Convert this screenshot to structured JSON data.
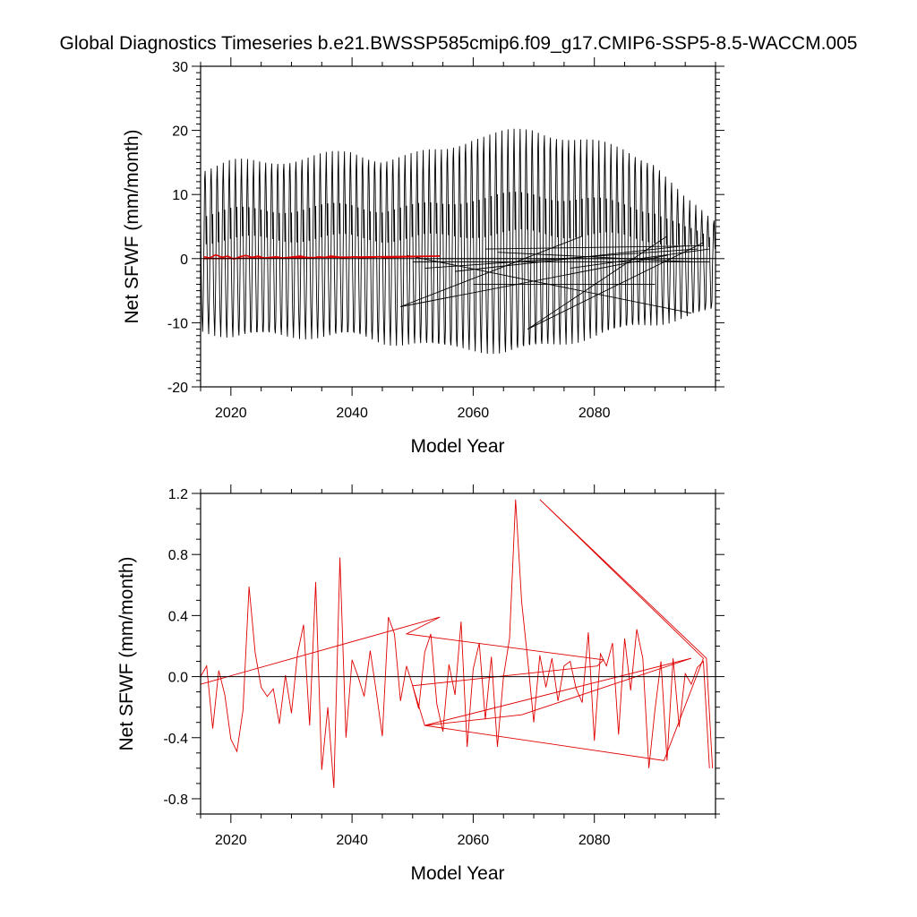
{
  "figure": {
    "title": "Global Diagnostics Timeseries b.e21.BWSSP585cmip6.f09_g17.CMIP6-SSP5-8.5-WACCM.005"
  },
  "chart_data": [
    {
      "type": "line",
      "xlabel": "Model Year",
      "ylabel": "Net SFWF (mm/month)",
      "xlim": [
        2015,
        2100
      ],
      "ylim": [
        -20,
        30
      ],
      "x_ticks": [
        2020,
        2040,
        2060,
        2080
      ],
      "x_tick_labels": [
        "2020",
        "2040",
        "2060",
        "2080"
      ],
      "y_ticks": [
        -20,
        -10,
        0,
        10,
        20,
        30
      ],
      "y_tick_labels": [
        "-20",
        "-10",
        "0",
        "10",
        "20",
        "30"
      ],
      "zero_line": 0,
      "colors": {
        "monthly": "#000000",
        "annual": "#e00000",
        "zero": "#000000"
      },
      "grid": false,
      "series": [
        {
          "style": "monthly-black",
          "monthly_envelope": {
            "x": [
              2015,
              2020,
              2025,
              2030,
              2035,
              2040,
              2045,
              2050,
              2055,
              2060,
              2065,
              2070,
              2075,
              2080,
              2085,
              2090,
              2095,
              2099.5
            ],
            "max": [
              14,
              15,
              15,
              15.5,
              16,
              16.5,
              15.5,
              16,
              17,
              19,
              19.5,
              20,
              19,
              18,
              17,
              15,
              9,
              6
            ],
            "min": [
              -11,
              -12,
              -12,
              -12,
              -12,
              -12,
              -13,
              -13,
              -14,
              -14,
              -14.5,
              -14,
              -13,
              -12,
              -11,
              -10,
              -9,
              -8
            ]
          },
          "spurious_segments": [
            [
              [
                2048,
                -7.5
              ],
              [
                2078,
                3.5
              ]
            ],
            [
              [
                2048,
                -7.5
              ],
              [
                2092,
                0.5
              ]
            ],
            [
              [
                2049,
                0.5
              ],
              [
                2096,
                -8.5
              ]
            ],
            [
              [
                2050,
                -0.5
              ],
              [
                2099,
                -0.5
              ]
            ],
            [
              [
                2052,
                -1.5
              ],
              [
                2097,
                1.5
              ]
            ],
            [
              [
                2054,
                0.0
              ],
              [
                2098,
                0.0
              ]
            ],
            [
              [
                2057,
                -2.0
              ],
              [
                2095,
                2.0
              ]
            ],
            [
              [
                2062,
                1.5
              ],
              [
                2098,
                2.0
              ]
            ],
            [
              [
                2069,
                -11.0
              ],
              [
                2092,
                3.5
              ]
            ],
            [
              [
                2069,
                -11.0
              ],
              [
                2098,
                2.5
              ]
            ],
            [
              [
                2076,
                -1.5
              ],
              [
                2099,
                1.5
              ]
            ],
            [
              [
                2060,
                -4.0
              ],
              [
                2090,
                -4.0
              ]
            ],
            [
              [
                2064,
                1.0
              ],
              [
                2096,
                -0.5
              ]
            ]
          ]
        },
        {
          "style": "annual-red",
          "x": [
            2015.5,
            2016.5,
            2017.5,
            2018.5,
            2019.5,
            2020.5,
            2021.5,
            2022.5,
            2023.5,
            2024.5,
            2025.5,
            2026.5,
            2027.5,
            2028.5,
            2029.5,
            2030.5,
            2031.5,
            2032.5,
            2033.5,
            2034.5,
            2035.5,
            2036.5,
            2037.5,
            2038.5,
            2039.5,
            2040.5,
            2041.5,
            2042.5,
            2043.5,
            2044.5,
            2045.5,
            2046.5,
            2054.5,
            2015.5
          ],
          "y": [
            0.3,
            0.1,
            0.6,
            0.2,
            0.4,
            -0.1,
            0.3,
            0.5,
            0.2,
            0.4,
            0.1,
            0.2,
            0.3,
            0.1,
            0.2,
            0.3,
            0.4,
            0.2,
            0.1,
            0.3,
            0.2,
            0.4,
            0.3,
            0.1,
            0.2,
            0.3,
            0.1,
            0.2,
            0.2,
            0.3,
            0.1,
            0.2,
            0.4,
            0.0
          ]
        }
      ]
    },
    {
      "type": "line",
      "xlabel": "Model Year",
      "ylabel": "Net SFWF (mm/month)",
      "xlim": [
        2015,
        2100
      ],
      "ylim": [
        -0.9,
        1.2
      ],
      "x_ticks": [
        2020,
        2040,
        2060,
        2080
      ],
      "x_tick_labels": [
        "2020",
        "2040",
        "2060",
        "2080"
      ],
      "y_ticks": [
        -0.8,
        -0.4,
        0.0,
        0.4,
        0.8,
        1.2
      ],
      "y_tick_labels": [
        "-0.8",
        "-0.4",
        "0.0",
        "0.4",
        "0.8",
        "1.2"
      ],
      "zero_line": 0,
      "colors": {
        "line": "#e00000",
        "zero": "#000000"
      },
      "grid": false,
      "series": [
        {
          "style": "annual-red",
          "x": [
            2015.0,
            2016.0,
            2017.0,
            2018.0,
            2019.0,
            2020.0,
            2021.0,
            2022.0,
            2023.0,
            2024.0,
            2025.0,
            2026.0,
            2027.0,
            2028.0,
            2029.0,
            2030.0,
            2031.0,
            2032.0,
            2033.0,
            2034.0,
            2035.0,
            2036.0,
            2037.0,
            2038.0,
            2039.0,
            2040.0,
            2041.0,
            2042.0,
            2043.0,
            2044.0,
            2045.0,
            2046.0,
            2047.0,
            2048.0,
            2049.0,
            2050.0,
            2051.0,
            2052.0,
            2053.0,
            2054.0,
            2055.0,
            2056.0,
            2057.0,
            2058.0,
            2059.0,
            2060.0,
            2061.0,
            2062.0,
            2063.0,
            2064.0,
            2065.0,
            2066.0,
            2067.0,
            2068.0,
            2069.0,
            2070.0,
            2071.0,
            2072.0,
            2073.0,
            2074.0,
            2075.0,
            2076.0,
            2077.0,
            2078.0,
            2079.0,
            2080.0,
            2081.0,
            2082.0,
            2083.0,
            2084.0,
            2085.0,
            2086.0,
            2087.0,
            2088.0,
            2089.0,
            2090.0,
            2091.0,
            2092.0,
            2093.0,
            2094.0,
            2095.0,
            2096.0,
            2097.0,
            2098.0,
            2099.0
          ],
          "y": [
            0.0,
            0.07,
            -0.34,
            0.04,
            -0.12,
            -0.41,
            -0.49,
            -0.22,
            0.59,
            0.16,
            -0.07,
            -0.13,
            -0.08,
            -0.31,
            0.01,
            -0.24,
            0.15,
            0.34,
            -0.32,
            0.62,
            -0.61,
            -0.2,
            -0.73,
            0.78,
            -0.4,
            0.11,
            0.0,
            -0.13,
            0.17,
            -0.1,
            -0.39,
            0.39,
            0.28,
            -0.16,
            0.07,
            -0.06,
            -0.21,
            0.16,
            0.28,
            -0.18,
            -0.36,
            0.08,
            -0.12,
            0.36,
            -0.46,
            0.05,
            0.22,
            -0.28,
            0.13,
            -0.46,
            0.0,
            0.25,
            1.16,
            0.49,
            0.11,
            -0.3,
            0.14,
            -0.07,
            0.12,
            -0.16,
            0.07,
            0.1,
            -0.08,
            -0.17,
            0.29,
            -0.42,
            0.15,
            0.07,
            0.22,
            -0.38,
            0.25,
            -0.09,
            0.31,
            0.12,
            -0.6,
            -0.22,
            0.1,
            -0.55,
            0.12,
            -0.33,
            0.02,
            -0.05,
            0.06,
            0.1,
            -0.6
          ]
        },
        {
          "style": "annual-red-overplot",
          "x": [
            2015.0,
            2054.5,
            2049.0,
            2081.5,
            2080.5,
            2050.0,
            2052.0,
            2068.0,
            2096.0,
            2052.0,
            2091.5,
            2098.0,
            2071.0,
            2098.5,
            2099.5
          ],
          "y": [
            -0.05,
            0.39,
            0.28,
            0.11,
            0.07,
            -0.06,
            -0.32,
            -0.25,
            0.12,
            -0.32,
            -0.55,
            0.12,
            1.16,
            0.12,
            -0.6
          ]
        }
      ]
    }
  ]
}
